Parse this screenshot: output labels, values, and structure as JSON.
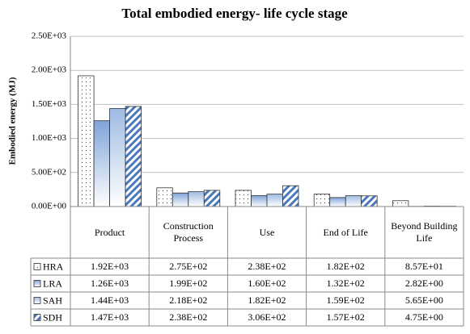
{
  "chart_data": {
    "type": "bar",
    "title": "Total embodied energy- life cycle stage",
    "y_label": "Embodied energy (MJ)",
    "categories": [
      "Product",
      "Construction Process",
      "Use",
      "End of Life",
      "Beyond Building Life"
    ],
    "series": [
      {
        "name": "HRA",
        "color": "#ffffff",
        "values": [
          1920,
          275,
          238,
          182,
          85.7
        ],
        "value_labels": [
          "1.92E+03",
          "2.75E+02",
          "2.38E+02",
          "1.82E+02",
          "8.57E+01"
        ]
      },
      {
        "name": "LRA",
        "color": "#7fa3d8",
        "values": [
          1260,
          199,
          160,
          132,
          2.82
        ],
        "value_labels": [
          "1.26E+03",
          "1.99E+02",
          "1.60E+02",
          "1.32E+02",
          "2.82E+00"
        ]
      },
      {
        "name": "SAH",
        "color": "#9ebbe3",
        "values": [
          1440,
          218,
          182,
          159,
          5.65
        ],
        "value_labels": [
          "1.44E+03",
          "2.18E+02",
          "1.82E+02",
          "1.59E+02",
          "5.65E+00"
        ]
      },
      {
        "name": "SDH",
        "color": "#4a78bd",
        "values": [
          1470,
          238,
          306,
          157,
          4.75
        ],
        "value_labels": [
          "1.47E+03",
          "2.38E+02",
          "3.06E+02",
          "1.57E+02",
          "4.75E+00"
        ]
      }
    ],
    "ylim": [
      0,
      2500
    ],
    "yticks": [
      {
        "value": 0,
        "label": "0.00E+00"
      },
      {
        "value": 500,
        "label": "5.00E+02"
      },
      {
        "value": 1000,
        "label": "1.00E+03"
      },
      {
        "value": 1500,
        "label": "1.50E+03"
      },
      {
        "value": 2000,
        "label": "2.00E+03"
      },
      {
        "value": 2500,
        "label": "2.50E+03"
      }
    ],
    "grid": true
  }
}
